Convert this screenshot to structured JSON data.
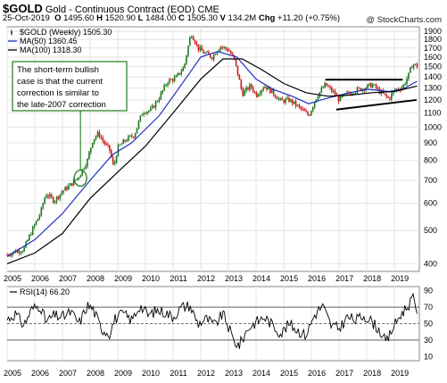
{
  "header": {
    "symbol": "$GOLD",
    "name": "Gold - Continuous Contract (EOD)",
    "exchange": "CME",
    "date": "25-Oct-2019",
    "open_label": "O",
    "open": "1495.60",
    "high_label": "H",
    "high": "1520.90",
    "low_label": "L",
    "low": "1484.00",
    "close_label": "C",
    "close": "1505.30",
    "volume_label": "V",
    "volume": "134.2M",
    "change_label": "Chg",
    "change": "+11.20 (+0.75%)",
    "brand": "@ StockCharts.com"
  },
  "colors": {
    "up": "#1f7a1f",
    "down": "#cc1f1f",
    "ma50": "#1f2fbf",
    "ma100": "#000000",
    "annotation": "#1f7a1f",
    "rsi": "#000000"
  },
  "chart_data": [
    {
      "type": "line",
      "panel": "price",
      "scale": "log",
      "legend": [
        {
          "label": "$GOLD (Weekly) 1505.30",
          "icon": "candle-icon"
        },
        {
          "label": "MA(50) 1360.45",
          "icon": "blue-line-icon"
        },
        {
          "label": "MA(100) 1318.30",
          "icon": "black-line-icon"
        }
      ],
      "x_ticks": [
        "2005",
        "2006",
        "2007",
        "2008",
        "2009",
        "2010",
        "2011",
        "2012",
        "2013",
        "2014",
        "2015",
        "2016",
        "2017",
        "2018",
        "2019"
      ],
      "y_ticks": [
        400,
        500,
        600,
        700,
        800,
        900,
        1000,
        1100,
        1200,
        1300,
        1400,
        1500,
        1600,
        1700,
        1800,
        1900
      ],
      "ylim": [
        380,
        1960
      ],
      "xlim": [
        2005.0,
        2019.9
      ],
      "series": [
        {
          "x": [
            2005.0,
            2005.3,
            2005.6,
            2005.9,
            2006.2,
            2006.4,
            2006.7,
            2007.0,
            2007.3,
            2007.6,
            2007.9,
            2008.1,
            2008.3,
            2008.5,
            2008.7,
            2008.85,
            2009.0,
            2009.3,
            2009.6,
            2009.9,
            2010.2,
            2010.5,
            2010.8,
            2011.1,
            2011.4,
            2011.65,
            2011.9,
            2012.1,
            2012.4,
            2012.7,
            2013.0,
            2013.2,
            2013.5,
            2013.8,
            2014.0,
            2014.3,
            2014.6,
            2014.9,
            2015.2,
            2015.5,
            2015.9,
            2016.2,
            2016.5,
            2016.8,
            2017.0,
            2017.3,
            2017.6,
            2017.9,
            2018.2,
            2018.5,
            2018.8,
            2019.0,
            2019.3,
            2019.5,
            2019.65,
            2019.82
          ],
          "values": [
            425,
            435,
            440,
            500,
            560,
            640,
            610,
            650,
            680,
            720,
            800,
            920,
            960,
            900,
            860,
            760,
            870,
            920,
            950,
            1110,
            1120,
            1220,
            1360,
            1390,
            1500,
            1880,
            1700,
            1650,
            1600,
            1720,
            1680,
            1580,
            1250,
            1320,
            1240,
            1320,
            1260,
            1190,
            1200,
            1150,
            1080,
            1230,
            1330,
            1260,
            1200,
            1250,
            1280,
            1300,
            1330,
            1260,
            1210,
            1280,
            1310,
            1410,
            1530,
            1505
          ]
        },
        {
          "name": "MA(50)",
          "x": [
            2005.0,
            2006.0,
            2007.0,
            2008.0,
            2008.8,
            2009.5,
            2010.5,
            2011.5,
            2012.0,
            2012.6,
            2013.3,
            2014.0,
            2014.6,
            2015.3,
            2015.9,
            2016.5,
            2017.2,
            2018.0,
            2018.8,
            2019.3,
            2019.82
          ],
          "values": [
            420,
            470,
            560,
            700,
            830,
            900,
            1080,
            1400,
            1600,
            1660,
            1600,
            1380,
            1290,
            1230,
            1170,
            1210,
            1250,
            1290,
            1270,
            1290,
            1360
          ]
        },
        {
          "name": "MA(100)",
          "x": [
            2005.0,
            2006.0,
            2007.0,
            2008.0,
            2009.0,
            2010.0,
            2011.0,
            2012.0,
            2012.8,
            2013.5,
            2014.2,
            2015.0,
            2015.8,
            2016.6,
            2017.4,
            2018.2,
            2019.0,
            2019.82
          ],
          "values": [
            400,
            430,
            490,
            620,
            740,
            880,
            1100,
            1380,
            1580,
            1580,
            1470,
            1340,
            1260,
            1230,
            1240,
            1260,
            1270,
            1318
          ]
        }
      ],
      "annotation": "The short-term bullish case is that the current correction is similar to the late-2007 correction",
      "highlight": {
        "x": 2007.65,
        "y": 710
      },
      "trendlines": [
        {
          "x": [
            2016.5,
            2019.3
          ],
          "y": [
            1375,
            1375
          ]
        },
        {
          "x": [
            2016.9,
            2019.8
          ],
          "y": [
            1125,
            1200
          ]
        }
      ]
    },
    {
      "type": "line",
      "panel": "rsi",
      "legend": [
        {
          "label": "RSI(14) 66.20",
          "icon": "line-icon"
        }
      ],
      "x_ticks": [
        "2005",
        "2006",
        "2007",
        "2008",
        "2009",
        "2010",
        "2011",
        "2012",
        "2013",
        "2014",
        "2015",
        "2016",
        "2017",
        "2018",
        "2019"
      ],
      "y_ticks": [
        10,
        30,
        50,
        70,
        90
      ],
      "reference_lines": [
        30,
        50,
        70
      ],
      "ylim": [
        5,
        95
      ],
      "xlim": [
        2005.0,
        2019.9
      ],
      "series": [
        {
          "x": [
            2005.0,
            2005.3,
            2005.6,
            2005.9,
            2006.2,
            2006.4,
            2006.7,
            2007.0,
            2007.3,
            2007.6,
            2007.9,
            2008.1,
            2008.4,
            2008.7,
            2008.9,
            2009.2,
            2009.5,
            2009.8,
            2010.1,
            2010.4,
            2010.7,
            2011.0,
            2011.3,
            2011.6,
            2011.9,
            2012.2,
            2012.5,
            2012.8,
            2013.0,
            2013.2,
            2013.4,
            2013.7,
            2014.0,
            2014.3,
            2014.6,
            2014.9,
            2015.2,
            2015.5,
            2015.8,
            2016.1,
            2016.4,
            2016.7,
            2017.0,
            2017.3,
            2017.6,
            2017.9,
            2018.2,
            2018.5,
            2018.7,
            2018.9,
            2019.2,
            2019.5,
            2019.65,
            2019.82
          ],
          "values": [
            55,
            62,
            48,
            68,
            72,
            52,
            60,
            58,
            64,
            50,
            72,
            68,
            44,
            38,
            56,
            62,
            54,
            72,
            60,
            66,
            64,
            58,
            70,
            72,
            50,
            56,
            48,
            62,
            46,
            28,
            24,
            44,
            52,
            58,
            48,
            38,
            50,
            42,
            36,
            60,
            72,
            48,
            44,
            58,
            54,
            60,
            52,
            40,
            26,
            42,
            60,
            72,
            82,
            66
          ]
        }
      ]
    }
  ]
}
